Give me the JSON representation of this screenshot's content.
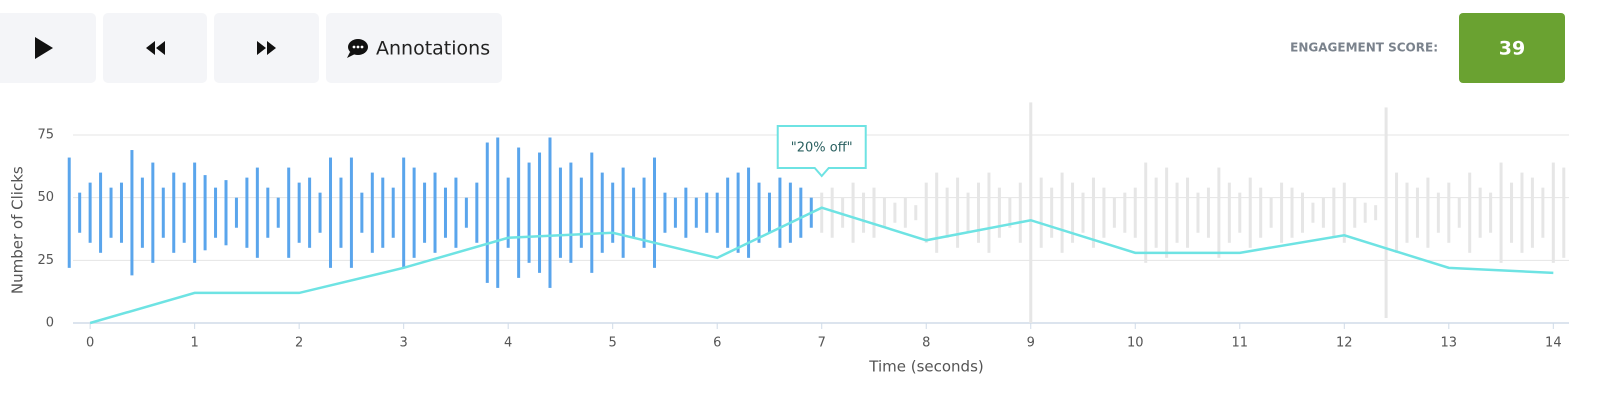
{
  "toolbar": {
    "annotations_button": "Annotations",
    "engagement_label": "ENGAGEMENT SCORE:",
    "engagement_score": 39
  },
  "chart_data": {
    "type": "waveform",
    "y_label": "Number of Clicks",
    "x_label": "Time (seconds)",
    "xlim": [
      -0.25,
      14.15
    ],
    "ylim": [
      0,
      90
    ],
    "xticks": [
      0,
      1,
      2,
      3,
      4,
      5,
      6,
      7,
      8,
      9,
      10,
      11,
      12,
      13,
      14
    ],
    "yticks": [
      0,
      25,
      50,
      75
    ],
    "grid": true,
    "waveform": [
      {
        "color": "#5aa5ec",
        "x": [
          -0.2,
          -0.1,
          0,
          0.1,
          0.2,
          0.3,
          0.4,
          0.5,
          0.6,
          0.7,
          0.8,
          0.9,
          1,
          1.1,
          1.2,
          1.3,
          1.4,
          1.5,
          1.6,
          1.7,
          1.8,
          1.9,
          2,
          2.1,
          2.2,
          2.3,
          2.4,
          2.5,
          2.6,
          2.7,
          2.8,
          2.9,
          3,
          3.1,
          3.2,
          3.3,
          3.4,
          3.5,
          3.6,
          3.7,
          3.8,
          3.9,
          4,
          4.1,
          4.2,
          4.3,
          4.4,
          4.5,
          4.6,
          4.7,
          4.8,
          4.9,
          5,
          5.1,
          5.2,
          5.3,
          5.4,
          5.5,
          5.6,
          5.7,
          5.8,
          5.9,
          6,
          6.1,
          6.2,
          6.3,
          6.4,
          6.5,
          6.6,
          6.7,
          6.8,
          6.9
        ],
        "low": [
          22,
          36,
          32,
          28,
          34,
          32,
          19,
          30,
          24,
          34,
          28,
          32,
          24,
          29,
          34,
          31,
          38,
          30,
          26,
          34,
          38,
          26,
          32,
          30,
          36,
          22,
          30,
          22,
          36,
          28,
          30,
          34,
          22,
          26,
          32,
          28,
          34,
          30,
          38,
          32,
          16,
          14,
          30,
          18,
          24,
          20,
          14,
          26,
          24,
          30,
          20,
          28,
          32,
          26,
          34,
          30,
          22,
          36,
          38,
          34,
          38,
          36,
          36,
          30,
          28,
          26,
          32,
          36,
          30,
          32,
          34,
          38
        ],
        "high": [
          66,
          52,
          56,
          60,
          54,
          56,
          69,
          58,
          64,
          54,
          60,
          56,
          64,
          59,
          54,
          57,
          50,
          58,
          62,
          54,
          50,
          62,
          56,
          58,
          52,
          66,
          58,
          66,
          52,
          60,
          58,
          54,
          66,
          62,
          56,
          60,
          54,
          58,
          50,
          56,
          72,
          74,
          58,
          70,
          64,
          68,
          74,
          62,
          64,
          58,
          68,
          60,
          56,
          62,
          54,
          58,
          66,
          52,
          50,
          54,
          50,
          52,
          52,
          58,
          60,
          62,
          56,
          52,
          58,
          56,
          54,
          50
        ]
      },
      {
        "color": "#e6e6e6",
        "x": [
          7,
          7.1,
          7.2,
          7.3,
          7.4,
          7.5,
          7.6,
          7.7,
          7.8,
          7.9,
          8,
          8.1,
          8.2,
          8.3,
          8.4,
          8.5,
          8.6,
          8.7,
          8.8,
          8.9,
          9,
          9.1,
          9.2,
          9.3,
          9.4,
          9.5,
          9.6,
          9.7,
          9.8,
          9.9,
          10,
          10.1,
          10.2,
          10.3,
          10.4,
          10.5,
          10.6,
          10.7,
          10.8,
          10.9,
          11,
          11.1,
          11.2,
          11.3,
          11.4,
          11.5,
          11.6,
          11.7,
          11.8,
          11.9,
          12,
          12.1,
          12.2,
          12.3,
          12.4,
          12.5,
          12.6,
          12.7,
          12.8,
          12.9,
          13,
          13.1,
          13.2,
          13.3,
          13.4,
          13.5,
          13.6,
          13.7,
          13.8,
          13.9,
          14,
          14.1
        ],
        "low": [
          36,
          34,
          38,
          32,
          36,
          34,
          38,
          40,
          38,
          41,
          32,
          28,
          34,
          30,
          36,
          32,
          28,
          34,
          38,
          32,
          0,
          30,
          34,
          28,
          32,
          36,
          30,
          34,
          38,
          36,
          34,
          24,
          30,
          26,
          32,
          30,
          36,
          34,
          26,
          32,
          36,
          30,
          34,
          38,
          32,
          34,
          36,
          40,
          38,
          34,
          32,
          38,
          40,
          41,
          2,
          28,
          32,
          34,
          30,
          36,
          32,
          38,
          28,
          34,
          36,
          24,
          32,
          28,
          30,
          34,
          24,
          26
        ],
        "high": [
          52,
          54,
          50,
          56,
          52,
          54,
          50,
          48,
          50,
          47,
          56,
          60,
          54,
          58,
          52,
          56,
          60,
          54,
          50,
          56,
          88,
          58,
          54,
          60,
          56,
          52,
          58,
          54,
          50,
          52,
          54,
          64,
          58,
          62,
          56,
          58,
          52,
          54,
          62,
          56,
          52,
          58,
          54,
          50,
          56,
          54,
          52,
          48,
          50,
          54,
          56,
          50,
          48,
          47,
          86,
          60,
          56,
          54,
          58,
          52,
          56,
          50,
          60,
          54,
          52,
          64,
          56,
          60,
          58,
          54,
          64,
          62
        ]
      }
    ],
    "series": [
      {
        "color": "#6ee3e3",
        "x": [
          0,
          1,
          2,
          3,
          4,
          5,
          6,
          7,
          8,
          9,
          10,
          11,
          12,
          13,
          14
        ],
        "values": [
          0,
          12,
          12,
          22,
          34,
          36,
          26,
          46,
          33,
          41,
          28,
          28,
          35,
          22,
          20
        ]
      }
    ],
    "annotation": {
      "text": "\"20% off\"",
      "x": 7
    }
  }
}
